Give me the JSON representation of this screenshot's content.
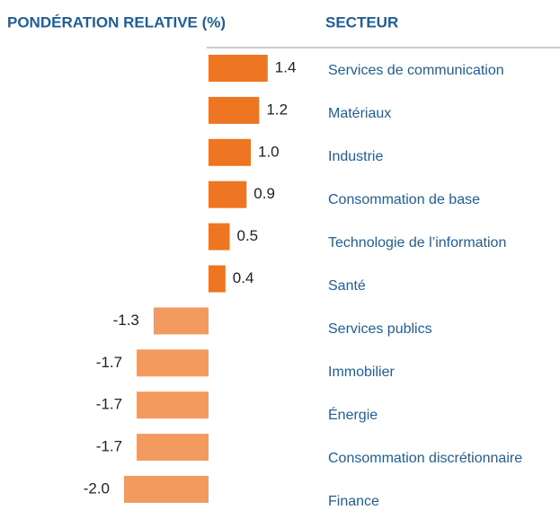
{
  "chart_data": {
    "type": "bar",
    "orientation": "horizontal",
    "value_header": "PONDÉRATION RELATIVE (%)",
    "category_header": "SECTEUR",
    "categories": [
      "Services de communication",
      "Matériaux",
      "Industrie",
      "Consommation de base",
      "Technologie de l’information",
      "Santé",
      "Services publics",
      "Immobilier",
      "Énergie",
      "Consommation discrétionnaire",
      "Finance"
    ],
    "values": [
      1.4,
      1.2,
      1.0,
      0.9,
      0.5,
      0.4,
      -1.3,
      -1.7,
      -1.7,
      -1.7,
      -2.0
    ],
    "value_labels": [
      "1.4",
      "1.2",
      "1.0",
      "0.9",
      "0.5",
      "0.4",
      "-1.3",
      "-1.7",
      "-1.7",
      "-1.7",
      "-2.0"
    ],
    "positive_color": "#ee7623",
    "negative_color": "#f39b5e"
  }
}
